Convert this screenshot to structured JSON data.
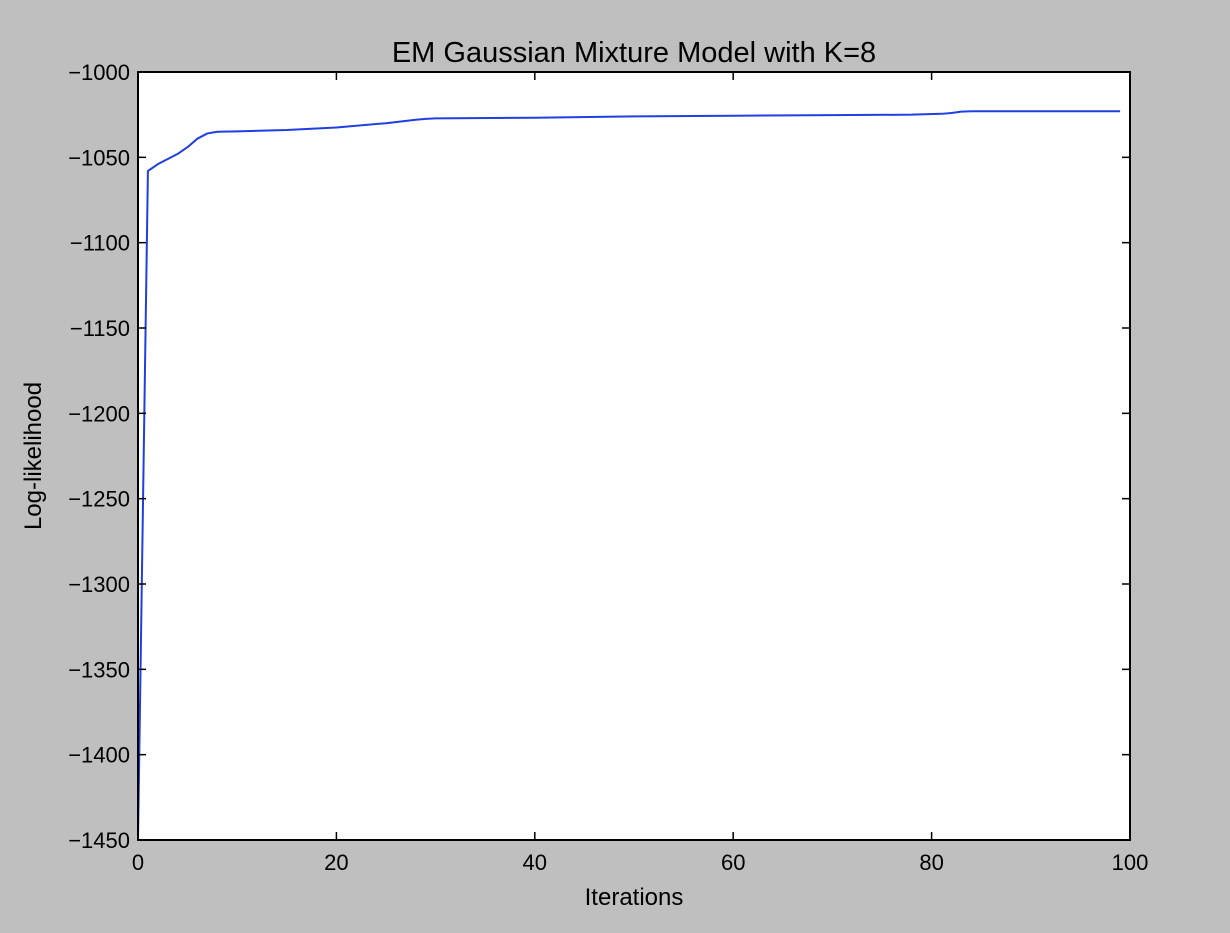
{
  "chart_data": {
    "type": "line",
    "title": "EM Gaussian Mixture Model with K=8",
    "xlabel": "Iterations",
    "ylabel": "Log-likelihood",
    "xlim": [
      0,
      100
    ],
    "ylim": [
      -1450,
      -1000
    ],
    "xticks": [
      0,
      20,
      40,
      60,
      80,
      100
    ],
    "xtick_labels": [
      "0",
      "20",
      "40",
      "60",
      "80",
      "100"
    ],
    "yticks": [
      -1000,
      -1050,
      -1100,
      -1150,
      -1200,
      -1250,
      -1300,
      -1350,
      -1400,
      -1450
    ],
    "ytick_labels": [
      "−1000",
      "−1050",
      "−1100",
      "−1150",
      "−1200",
      "−1250",
      "−1300",
      "−1350",
      "−1400",
      "−1450"
    ],
    "grid": false,
    "legend": false,
    "series": [
      {
        "color": "#1f3fe0",
        "x": [
          0,
          1,
          2,
          3,
          4,
          5,
          6,
          7,
          8,
          10,
          15,
          20,
          25,
          28,
          29,
          30,
          40,
          50,
          60,
          70,
          78,
          81,
          82,
          83,
          84,
          90,
          99
        ],
        "y": [
          -1450,
          -1058,
          -1054,
          -1051,
          -1048,
          -1044,
          -1039,
          -1036,
          -1035,
          -1034.8,
          -1034,
          -1032.5,
          -1030,
          -1028,
          -1027.5,
          -1027.2,
          -1026.8,
          -1026,
          -1025.6,
          -1025.3,
          -1025,
          -1024.5,
          -1024,
          -1023.2,
          -1023,
          -1023,
          -1023
        ]
      }
    ]
  }
}
